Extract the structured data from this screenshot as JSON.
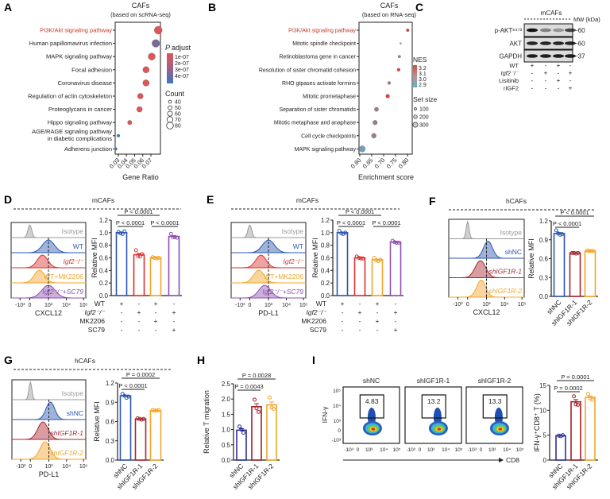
{
  "chart_data": [
    {
      "panel": "A",
      "type": "scatter",
      "title": "CAFs",
      "subtitle": "(based on scRNA-seq)",
      "xlabel": "Gene Ratio",
      "xticks": [
        "0.03",
        "0.04",
        "0.05",
        "0.06",
        "0.07"
      ],
      "xlim": [
        0.026,
        0.081
      ],
      "highlight": "PI3K/Akt signaling pathway",
      "categories": [
        "PI3K/Akt signaling pathway",
        "Human papillomavirus infection",
        "MAPK signaling pathway",
        "Focal adhesion",
        "Coronavirus disease",
        "Regulation of actin cytoskeleton",
        "Proteoglycans in cancer",
        "Hippo signaling pathway",
        "AGE/RAGE signaling pathway in diabetic complications",
        "Adherens junction"
      ],
      "x": [
        0.079,
        0.076,
        0.071,
        0.064,
        0.064,
        0.057,
        0.056,
        0.044,
        0.03,
        0.027
      ],
      "count": [
        80,
        78,
        72,
        65,
        65,
        58,
        57,
        45,
        31,
        28
      ],
      "p_adjust": [
        1e-07,
        3.2e-07,
        1e-07,
        1e-07,
        1e-07,
        1e-07,
        1e-07,
        1e-07,
        4.5e-07,
        4.5e-07
      ],
      "legend": {
        "color_title_italic": "P",
        "color_title": "adjust",
        "color_ticks": [
          "1e-07",
          "2e-07",
          "3e-07",
          "4e-07"
        ],
        "size_title": "Count",
        "size_ticks": [
          "40",
          "50",
          "60",
          "70",
          "80"
        ]
      },
      "colors": {
        "low_p": "#e05555",
        "high_p": "#3a78c2",
        "highlight_text": "#c0392b"
      }
    },
    {
      "panel": "B",
      "type": "scatter",
      "title": "CAFs",
      "subtitle": "(based on RNA-seq)",
      "xlabel": "Enrichment score",
      "xticks": [
        "0.60",
        "0.65",
        "0.70",
        "0.75",
        "0.80"
      ],
      "xlim": [
        0.6,
        0.8
      ],
      "highlight": "PI3K/Akt signaling pathway",
      "categories": [
        "PI3K/Akt signaling pathway",
        "Mitotic spindle checkpoint",
        "Retinoblastoma gene in cancer",
        "Resolution of sister chromatid cohesion",
        "RHO gtpases activate formins",
        "Mitotic prometaphase",
        "Separation of sister chromatids",
        "Mitotic metaphase and anaphase",
        "Cell cycle checkpoints",
        "MAPK signaling pathway"
      ],
      "x": [
        0.801,
        0.771,
        0.766,
        0.763,
        0.723,
        0.717,
        0.67,
        0.664,
        0.659,
        0.61
      ],
      "NES": [
        3.2,
        2.9,
        3.05,
        3.2,
        3.05,
        3.2,
        3.05,
        3.05,
        3.05,
        2.95
      ],
      "set_size": [
        120,
        60,
        110,
        130,
        130,
        170,
        190,
        210,
        220,
        300
      ],
      "legend": {
        "color_title": "NES",
        "color_ticks": [
          "3.2",
          "3.1",
          "3.0",
          "2.9"
        ],
        "size_title": "Set size",
        "size_ticks": [
          "100",
          "200",
          "300"
        ]
      },
      "colors": {
        "high": "#e0433a",
        "low": "#5ab4d0",
        "highlight_text": "#c0392b"
      }
    },
    {
      "panel": "D",
      "type": "bar",
      "group": "mCAFs",
      "ylabel": "Relative MFI",
      "ylim": [
        0,
        1.2
      ],
      "yticks": [
        "0.0",
        "0.2",
        "0.4",
        "0.6",
        "0.8",
        "1.0",
        "1.2"
      ],
      "values": [
        1.0,
        0.65,
        0.6,
        0.94
      ],
      "points": [
        [
          1.01,
          0.99,
          0.98,
          1.02
        ],
        [
          0.72,
          0.63,
          0.62,
          0.66
        ],
        [
          0.61,
          0.6,
          0.59,
          0.6
        ],
        [
          0.98,
          0.93,
          0.93,
          0.92
        ]
      ],
      "colors": [
        "#2a56b0",
        "#d9312e",
        "#f2a52a",
        "#8e4fb0"
      ],
      "treatments": [
        {
          "name": "WT",
          "signs": [
            "+",
            "-",
            "+",
            "-"
          ]
        },
        {
          "name": "Igf2⁻/⁻",
          "signs": [
            "-",
            "+",
            "-",
            "+"
          ]
        },
        {
          "name": "MK2206",
          "signs": [
            "-",
            "-",
            "+",
            "-"
          ]
        },
        {
          "name": "SC79",
          "signs": [
            "-",
            "-",
            "-",
            "+"
          ]
        }
      ],
      "comparisons": [
        {
          "a": 0,
          "b": 1,
          "text": "P < 0.0001",
          "level": 0
        },
        {
          "a": 2,
          "b": 3,
          "text": "P < 0.0001",
          "level": 0
        },
        {
          "a": 0,
          "b": 2,
          "text": "P < 0.0001",
          "level": 1
        }
      ],
      "histogram": {
        "xlabel": "CXCL12",
        "xticks": [
          "-10³",
          "0",
          "10³",
          "10⁴",
          "10⁵"
        ],
        "rows": [
          "Isotype",
          "WT",
          "Igf2⁻/⁻",
          "WT+MK2206",
          "Igf2⁻/⁻+SC79"
        ],
        "row_colors": [
          "#999999",
          "#2a56b0",
          "#d9312e",
          "#f2a52a",
          "#8e4fb0"
        ]
      }
    },
    {
      "panel": "E",
      "type": "bar",
      "group": "mCAFs",
      "ylabel": "Relative MFI",
      "ylim": [
        0,
        1.2
      ],
      "yticks": [
        "0.0",
        "0.2",
        "0.4",
        "0.6",
        "0.8",
        "1.0",
        "1.2"
      ],
      "values": [
        1.0,
        0.6,
        0.57,
        0.85
      ],
      "points": [
        [
          1.03,
          0.99,
          0.98,
          1.0
        ],
        [
          0.62,
          0.6,
          0.59,
          0.59
        ],
        [
          0.6,
          0.56,
          0.55,
          0.57
        ],
        [
          0.87,
          0.85,
          0.84,
          0.84
        ]
      ],
      "colors": [
        "#2a56b0",
        "#d9312e",
        "#f2a52a",
        "#8e4fb0"
      ],
      "treatments": [
        {
          "name": "WT",
          "signs": [
            "+",
            "-",
            "+",
            "-"
          ]
        },
        {
          "name": "Igf2⁻/⁻",
          "signs": [
            "-",
            "+",
            "-",
            "+"
          ]
        },
        {
          "name": "MK2206",
          "signs": [
            "-",
            "-",
            "+",
            "-"
          ]
        },
        {
          "name": "SC79",
          "signs": [
            "-",
            "-",
            "-",
            "+"
          ]
        }
      ],
      "comparisons": [
        {
          "a": 0,
          "b": 1,
          "text": "P < 0.0001",
          "level": 0
        },
        {
          "a": 2,
          "b": 3,
          "text": "P < 0.0001",
          "level": 0
        },
        {
          "a": 0,
          "b": 2,
          "text": "P < 0.0001",
          "level": 1
        }
      ],
      "histogram": {
        "xlabel": "PD-L1",
        "xticks": [
          "-10³",
          "0",
          "10³",
          "10⁴",
          "10⁵"
        ],
        "rows": [
          "Isotype",
          "WT",
          "Igf2⁻/⁻",
          "WT+MK2206",
          "Igf2⁻/⁻+SC79"
        ],
        "row_colors": [
          "#999999",
          "#2a56b0",
          "#d9312e",
          "#f2a52a",
          "#8e4fb0"
        ]
      }
    },
    {
      "panel": "F",
      "type": "bar",
      "group": "hCAFs",
      "ylabel": "Relative MFI",
      "ylim": [
        0,
        1.2
      ],
      "yticks": [
        "0.0",
        "0.3",
        "0.6",
        "0.9",
        "1.2"
      ],
      "categories": [
        "shNC",
        "shIGF1R-1",
        "shIGF1R-2"
      ],
      "values": [
        1.0,
        0.69,
        0.72
      ],
      "points": [
        [
          1.05,
          1.0,
          0.98,
          0.99
        ],
        [
          0.69,
          0.69,
          0.68,
          0.69
        ],
        [
          0.73,
          0.72,
          0.72,
          0.72
        ]
      ],
      "colors": [
        "#2a56b0",
        "#a8262f",
        "#f2a52a"
      ],
      "comparisons": [
        {
          "a": 0,
          "b": 1,
          "text": "P < 0.0001",
          "level": 0
        },
        {
          "a": 0,
          "b": 2,
          "text": "P < 0.0001",
          "level": 1
        }
      ],
      "histogram": {
        "xlabel": "CXCL12",
        "xticks": [
          "-10³",
          "0",
          "10³",
          "10⁴",
          "10⁵"
        ],
        "rows": [
          "Isotype",
          "shNC",
          "shIGF1R-1",
          "shIGF1R-2"
        ],
        "row_colors": [
          "#999999",
          "#2a56b0",
          "#a8262f",
          "#f2a52a"
        ]
      }
    },
    {
      "panel": "G",
      "type": "bar",
      "group": "hCAFs",
      "ylabel": "Relative MFI",
      "ylim": [
        0,
        1.2
      ],
      "yticks": [
        "0.0",
        "0.3",
        "0.6",
        "0.9",
        "1.2"
      ],
      "categories": [
        "shNC",
        "shIGF1R-1",
        "shIGF1R-2"
      ],
      "values": [
        1.0,
        0.64,
        0.77
      ],
      "points": [
        [
          1.03,
          1.0,
          0.97,
          0.99
        ],
        [
          0.65,
          0.64,
          0.63,
          0.64
        ],
        [
          0.78,
          0.77,
          0.77,
          0.78
        ]
      ],
      "colors": [
        "#2a56b0",
        "#a8262f",
        "#f2a52a"
      ],
      "comparisons": [
        {
          "a": 0,
          "b": 1,
          "text": "P < 0.0001",
          "level": 0
        },
        {
          "a": 0,
          "b": 2,
          "text": "P = 0.0002",
          "level": 1
        }
      ],
      "histogram": {
        "xlabel": "PD-L1",
        "xticks": [
          "-10³",
          "0",
          "10³",
          "10⁴",
          "10⁵"
        ],
        "rows": [
          "Isotype",
          "shNC",
          "shIGF1R-1",
          "shIGF1R-2"
        ],
        "row_colors": [
          "#999999",
          "#2a56b0",
          "#a8262f",
          "#f2a52a"
        ]
      }
    },
    {
      "panel": "H",
      "type": "bar",
      "ylabel": "Relative T migration",
      "ylim": [
        0,
        2.5
      ],
      "yticks": [
        "0.0",
        "0.5",
        "1.0",
        "1.5",
        "2.0",
        "2.5"
      ],
      "categories": [
        "shNC",
        "shIGF1R-1",
        "shIGF1R-2"
      ],
      "values": [
        0.98,
        1.75,
        1.81
      ],
      "points": [
        [
          1.1,
          1.0,
          0.9
        ],
        [
          1.98,
          1.7,
          1.58
        ],
        [
          2.05,
          1.72,
          1.68
        ]
      ],
      "colors": [
        "#2b2f9a",
        "#a31d2a",
        "#f2a52a"
      ],
      "comparisons": [
        {
          "a": 0,
          "b": 1,
          "text": "P = 0.0043",
          "level": 0
        },
        {
          "a": 0,
          "b": 2,
          "text": "P = 0.0028",
          "level": 1
        }
      ]
    },
    {
      "panel": "I",
      "type": "bar",
      "ylabel": "IFN-γ⁺CD8⁺ T (%)",
      "ylim": [
        0,
        15
      ],
      "yticks": [
        "0",
        "5",
        "10",
        "15"
      ],
      "categories": [
        "shNC",
        "shIGF1R-1",
        "shIGF1R-2"
      ],
      "values": [
        4.9,
        11.7,
        12.6
      ],
      "points": [
        [
          4.9,
          4.8,
          5.0
        ],
        [
          12.8,
          11.2,
          11.1
        ],
        [
          13.3,
          12.4,
          12.1
        ]
      ],
      "colors": [
        "#2b2f9a",
        "#a31d2a",
        "#f2a52a"
      ],
      "comparisons": [
        {
          "a": 0,
          "b": 1,
          "text": "P = 0.0002",
          "level": 0
        },
        {
          "a": 0,
          "b": 2,
          "text": "P = 0.0001",
          "level": 1
        }
      ],
      "flow": {
        "titles": [
          "shNC",
          "shIGF1R-1",
          "shIGF1R-2"
        ],
        "gate_percent": [
          "4.83",
          "13.2",
          "13.3"
        ],
        "ylabel": "IFN-γ",
        "xlabel": "CD8",
        "yticks": [
          "10⁵",
          "10⁴",
          "10³",
          "0",
          "-10³"
        ],
        "xticks": [
          "-10³",
          "0",
          "10³",
          "10⁴",
          "10⁵"
        ]
      }
    }
  ],
  "western_blot": {
    "panel": "C",
    "group": "mCAFs",
    "mw_header": "MW (kDa)",
    "bands": [
      {
        "name": "p-AKTˢ⁴⁷³",
        "mw": "~60"
      },
      {
        "name": "AKT",
        "mw": "~60"
      },
      {
        "name": "GAPDH",
        "mw": "~37"
      }
    ],
    "treatments": [
      {
        "name": "WT",
        "signs": [
          "+",
          "-",
          "+",
          "-"
        ]
      },
      {
        "name": "Igf2⁻/⁻",
        "signs": [
          "-",
          "+",
          "-",
          "+"
        ]
      },
      {
        "name": "Lisitinib",
        "signs": [
          "-",
          "-",
          "+",
          "-"
        ]
      },
      {
        "name": "rIGF2",
        "signs": [
          "-",
          "-",
          "-",
          "+"
        ]
      }
    ]
  }
}
